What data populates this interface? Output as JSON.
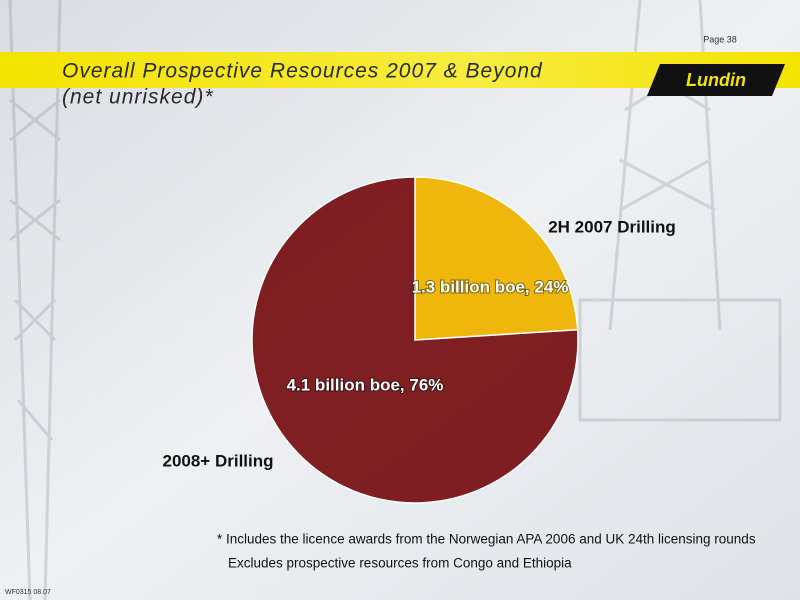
{
  "page": "Page 38",
  "logo": "Lundin",
  "chart_data": {
    "type": "pie",
    "title": "Overall Prospective Resources 2007 & Beyond",
    "subtitle": "(net unrisked)*",
    "categories": [
      "2H 2007 Drilling",
      "2008+ Drilling"
    ],
    "values": [
      24,
      76
    ],
    "value_labels": [
      "1.3 billion boe, 24%",
      "4.1 billion boe, 76%"
    ],
    "colors": [
      "#f0b400",
      "#7a1418"
    ]
  },
  "footnotes": [
    "* Includes the licence awards from the Norwegian APA 2006 and UK 24th licensing rounds",
    "Excludes prospective resources from Congo and Ethiopia"
  ],
  "doc_code": "WF0315 08.07"
}
